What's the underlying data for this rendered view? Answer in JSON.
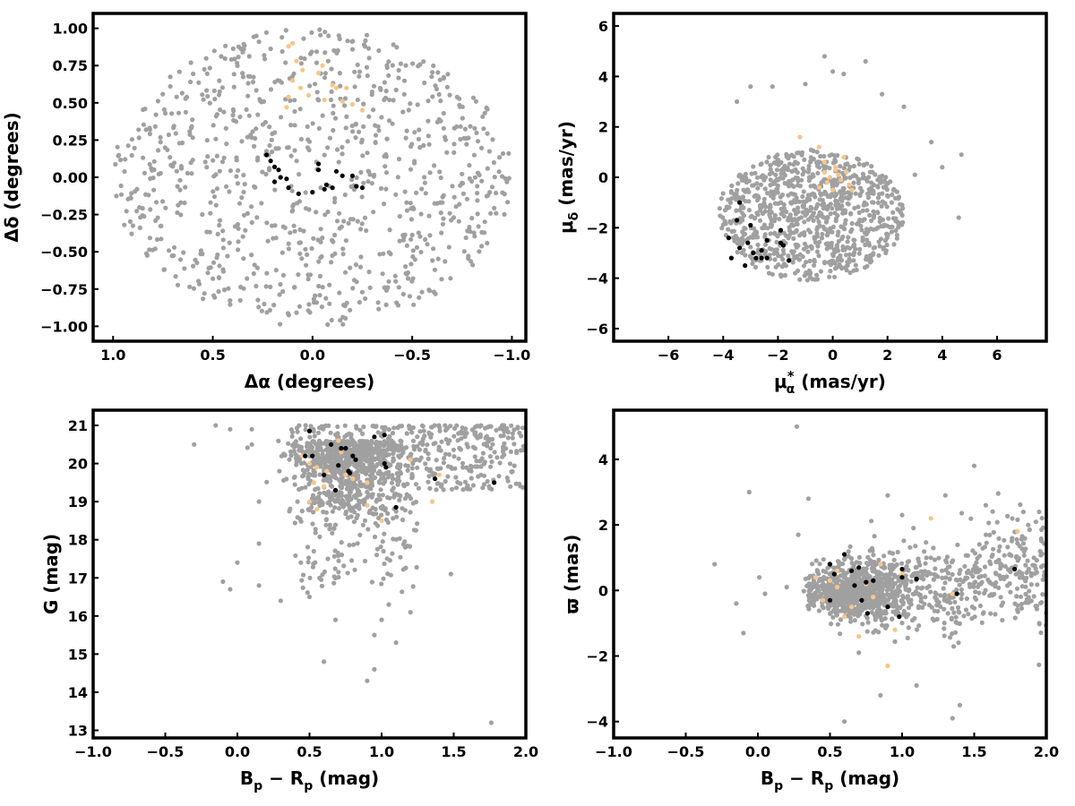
{
  "colors": {
    "field": "#a0a0a0",
    "halo": "#f7c58a",
    "core": "#000000",
    "frame": "#000000"
  },
  "chart_data": [
    {
      "type": "scatter",
      "id": "sky",
      "xlim": [
        1.1,
        -1.07
      ],
      "ylim": [
        -1.1,
        1.1
      ],
      "xticks": [
        1.0,
        0.5,
        0.0,
        -0.5,
        -1.0
      ],
      "xtick_labels": [
        "1.0",
        "0.5",
        "0.0",
        "−0.5",
        "−1.0"
      ],
      "yticks": [
        1.0,
        0.75,
        0.5,
        0.25,
        0.0,
        -0.25,
        -0.5,
        -0.75,
        -1.0
      ],
      "ytick_labels": [
        "1.00",
        "0.75",
        "0.50",
        "0.25",
        "0.00",
        "−0.25",
        "−0.50",
        "−0.75",
        "−1.00"
      ],
      "xlabel": "Δα (degrees)",
      "ylabel": "Δδ (degrees)",
      "grid": false,
      "field_cloud": {
        "shape": "disk",
        "center": [
          0.0,
          0.0
        ],
        "radius": [
          1.0,
          1.0
        ],
        "count": 900
      },
      "halo_points": [
        [
          0.12,
          0.88
        ],
        [
          0.08,
          0.78
        ],
        [
          0.05,
          0.72
        ],
        [
          -0.05,
          0.75
        ],
        [
          -0.03,
          0.7
        ],
        [
          0.1,
          0.65
        ],
        [
          0.06,
          0.6
        ],
        [
          0.02,
          0.55
        ],
        [
          0.12,
          0.54
        ],
        [
          -0.06,
          0.52
        ],
        [
          -0.12,
          0.6
        ],
        [
          -0.17,
          0.6
        ],
        [
          -0.15,
          0.51
        ],
        [
          -0.2,
          0.49
        ],
        [
          -0.25,
          0.45
        ],
        [
          0.13,
          0.47
        ],
        [
          0.1,
          0.9
        ],
        [
          -0.1,
          0.62
        ]
      ],
      "core_points": [
        [
          0.23,
          0.15
        ],
        [
          0.21,
          0.11
        ],
        [
          0.19,
          0.07
        ],
        [
          0.17,
          0.05
        ],
        [
          0.16,
          0.0
        ],
        [
          0.19,
          -0.03
        ],
        [
          0.13,
          -0.01
        ],
        [
          0.12,
          -0.07
        ],
        [
          0.07,
          -0.11
        ],
        [
          0.0,
          -0.1
        ],
        [
          -0.03,
          0.09
        ],
        [
          -0.03,
          0.05
        ],
        [
          -0.07,
          -0.05
        ],
        [
          -0.06,
          -0.08
        ],
        [
          -0.1,
          -0.07
        ],
        [
          -0.12,
          0.04
        ],
        [
          -0.15,
          0.01
        ],
        [
          -0.2,
          0.01
        ],
        [
          -0.22,
          -0.06
        ],
        [
          -0.25,
          -0.07
        ]
      ]
    },
    {
      "type": "scatter",
      "id": "proper-motion",
      "xlim": [
        -8,
        7.8
      ],
      "ylim": [
        -6.5,
        6.5
      ],
      "xticks": [
        -6,
        -4,
        -2,
        0,
        2,
        4,
        6
      ],
      "xtick_labels": [
        "−6",
        "−4",
        "−2",
        "0",
        "2",
        "4",
        "6"
      ],
      "yticks": [
        6,
        4,
        2,
        0,
        -2,
        -4,
        -6
      ],
      "ytick_labels": [
        "6",
        "4",
        "2",
        "0",
        "−2",
        "−4",
        "−6"
      ],
      "xlabel_symbol": "μ",
      "xlabel_subscript": "α",
      "xlabel_superscript": "*",
      "xlabel_rest": " (mas/yr)",
      "ylabel_symbol": "μ",
      "ylabel_subscript": "δ",
      "ylabel_rest": " (mas/yr)",
      "grid": false,
      "field_cloud": {
        "shape": "ellipse",
        "center": [
          -0.8,
          -1.5
        ],
        "radius": [
          3.4,
          2.6
        ],
        "count": 900
      },
      "field_extra": [
        [
          -1.0,
          3.7
        ],
        [
          -0.3,
          4.8
        ],
        [
          0.0,
          4.2
        ],
        [
          0.4,
          4.1
        ],
        [
          1.2,
          4.6
        ],
        [
          -2.2,
          3.6
        ],
        [
          -3.0,
          3.6
        ],
        [
          -3.5,
          3.0
        ],
        [
          1.8,
          3.3
        ],
        [
          2.6,
          2.8
        ],
        [
          3.6,
          1.4
        ],
        [
          4.7,
          0.9
        ],
        [
          4.0,
          0.4
        ],
        [
          3.0,
          0.1
        ],
        [
          4.6,
          -1.6
        ]
      ],
      "halo_points": [
        [
          -0.5,
          1.2
        ],
        [
          -0.3,
          0.6
        ],
        [
          0.1,
          0.4
        ],
        [
          0.5,
          0.2
        ],
        [
          0.3,
          -0.1
        ],
        [
          -0.2,
          -0.2
        ],
        [
          0.0,
          -0.5
        ],
        [
          -0.5,
          -0.4
        ],
        [
          0.6,
          -0.3
        ],
        [
          0.2,
          0.1
        ],
        [
          -0.3,
          0.2
        ],
        [
          0.4,
          0.8
        ],
        [
          -1.2,
          1.6
        ],
        [
          0.7,
          -0.5
        ],
        [
          -0.1,
          0.0
        ],
        [
          0.1,
          0.3
        ]
      ],
      "core_points": [
        [
          -3.4,
          -1.0
        ],
        [
          -3.5,
          -1.7
        ],
        [
          -3.0,
          -1.9
        ],
        [
          -3.8,
          -2.4
        ],
        [
          -3.1,
          -2.6
        ],
        [
          -2.4,
          -2.5
        ],
        [
          -3.4,
          -2.8
        ],
        [
          -2.9,
          -3.0
        ],
        [
          -2.6,
          -2.9
        ],
        [
          -3.7,
          -3.2
        ],
        [
          -2.8,
          -3.2
        ],
        [
          -2.6,
          -3.2
        ],
        [
          -2.4,
          -3.2
        ],
        [
          -3.2,
          -3.5
        ],
        [
          -1.9,
          -2.6
        ],
        [
          -1.8,
          -2.7
        ],
        [
          -1.6,
          -3.3
        ],
        [
          -1.9,
          -2.1
        ]
      ]
    },
    {
      "type": "scatter",
      "id": "cmd",
      "xlim": [
        -1.0,
        2.0
      ],
      "ylim": [
        12.8,
        21.4
      ],
      "xticks": [
        -1.0,
        -0.5,
        0.0,
        0.5,
        1.0,
        1.5,
        2.0
      ],
      "xtick_labels": [
        "−1.0",
        "−0.5",
        "0.0",
        "0.5",
        "1.0",
        "1.5",
        "2.0"
      ],
      "yticks": [
        21,
        20,
        19,
        18,
        17,
        16,
        15,
        14,
        13
      ],
      "ytick_labels": [
        "21",
        "20",
        "19",
        "18",
        "17",
        "16",
        "15",
        "14",
        "13"
      ],
      "xlabel_parts": [
        "B",
        "p",
        " − R",
        "p",
        " (mag)"
      ],
      "ylabel": "G (mag)",
      "grid": false,
      "field_points": [
        [
          1.76,
          13.2
        ],
        [
          0.9,
          14.3
        ],
        [
          0.6,
          14.8
        ],
        [
          0.95,
          14.6
        ],
        [
          1.1,
          15.3
        ],
        [
          0.95,
          15.5
        ],
        [
          1.0,
          15.9
        ],
        [
          1.2,
          16.1
        ],
        [
          0.68,
          15.9
        ],
        [
          0.3,
          16.4
        ],
        [
          0.15,
          16.8
        ],
        [
          0.0,
          17.4
        ],
        [
          -0.1,
          16.9
        ],
        [
          -0.05,
          16.7
        ],
        [
          0.15,
          17.9
        ],
        [
          0.5,
          16.5
        ],
        [
          1.48,
          17.1
        ],
        [
          1.05,
          16.3
        ],
        [
          -0.3,
          20.5
        ],
        [
          -0.15,
          21.0
        ],
        [
          -0.05,
          20.9
        ],
        [
          0.1,
          20.9
        ],
        [
          0.15,
          19.0
        ],
        [
          0.1,
          20.5
        ]
      ],
      "halo_points": [
        [
          0.45,
          20.2
        ],
        [
          0.5,
          20.0
        ],
        [
          0.53,
          19.5
        ],
        [
          0.55,
          19.9
        ],
        [
          0.5,
          19.0
        ],
        [
          0.55,
          18.8
        ],
        [
          0.62,
          19.8
        ],
        [
          0.7,
          20.6
        ],
        [
          0.75,
          19.7
        ],
        [
          0.8,
          19.6
        ],
        [
          0.9,
          18.9
        ],
        [
          0.9,
          19.5
        ],
        [
          1.0,
          18.5
        ],
        [
          1.2,
          20.1
        ],
        [
          1.35,
          19.0
        ],
        [
          1.4,
          19.7
        ],
        [
          0.72,
          20.3
        ],
        [
          0.6,
          19.4
        ]
      ],
      "core_points": [
        [
          0.47,
          20.2
        ],
        [
          0.52,
          20.2
        ],
        [
          0.5,
          20.85
        ],
        [
          0.6,
          19.7
        ],
        [
          0.65,
          20.5
        ],
        [
          0.68,
          19.3
        ],
        [
          0.7,
          19.95
        ],
        [
          0.72,
          20.4
        ],
        [
          0.75,
          20.4
        ],
        [
          0.77,
          19.8
        ],
        [
          0.8,
          20.2
        ],
        [
          0.82,
          20.1
        ],
        [
          0.95,
          20.7
        ],
        [
          1.02,
          20.75
        ],
        [
          1.02,
          20.0
        ],
        [
          1.03,
          19.9
        ],
        [
          1.1,
          18.85
        ],
        [
          1.37,
          19.6
        ],
        [
          1.78,
          19.5
        ],
        [
          0.78,
          19.75
        ]
      ]
    },
    {
      "type": "scatter",
      "id": "parallax",
      "xlim": [
        -1.0,
        2.0
      ],
      "ylim": [
        -4.5,
        5.5
      ],
      "xticks": [
        -1.0,
        -0.5,
        0.0,
        0.5,
        1.0,
        1.5,
        2.0
      ],
      "xtick_labels": [
        "−1.0",
        "−0.5",
        "0.0",
        "0.5",
        "1.0",
        "1.5",
        "2.0"
      ],
      "yticks": [
        4,
        2,
        0,
        -2,
        -4
      ],
      "ytick_labels": [
        "4",
        "2",
        "0",
        "−2",
        "−4"
      ],
      "xlabel_parts": [
        "B",
        "p",
        " − R",
        "p",
        " (mag)"
      ],
      "ylabel": "ϖ (mas)",
      "grid": false,
      "field_points": [
        [
          0.27,
          5.0
        ],
        [
          -0.06,
          3.0
        ],
        [
          -0.3,
          0.8
        ],
        [
          -0.15,
          -0.4
        ],
        [
          -0.1,
          -1.3
        ],
        [
          0.35,
          2.8
        ],
        [
          0.28,
          1.7
        ],
        [
          0.6,
          -4.0
        ],
        [
          0.85,
          -3.2
        ],
        [
          1.1,
          -2.9
        ],
        [
          1.35,
          -3.9
        ],
        [
          1.4,
          -3.5
        ],
        [
          0.7,
          -1.9
        ],
        [
          1.5,
          3.8
        ],
        [
          1.58,
          2.6
        ],
        [
          1.95,
          2.4
        ],
        [
          1.0,
          2.3
        ],
        [
          0.9,
          2.9
        ],
        [
          0.01,
          0.4
        ],
        [
          0.05,
          -0.1
        ],
        [
          1.3,
          2.9
        ],
        [
          0.2,
          0.1
        ]
      ],
      "halo_points": [
        [
          0.4,
          0.4
        ],
        [
          0.45,
          -0.3
        ],
        [
          0.5,
          0.3
        ],
        [
          0.55,
          0.1
        ],
        [
          0.6,
          -0.8
        ],
        [
          0.65,
          -0.5
        ],
        [
          0.7,
          -1.4
        ],
        [
          0.75,
          0.2
        ],
        [
          0.8,
          -0.2
        ],
        [
          0.9,
          -2.3
        ],
        [
          0.95,
          -1.2
        ],
        [
          1.0,
          0.5
        ],
        [
          1.2,
          2.2
        ],
        [
          1.35,
          -0.1
        ],
        [
          1.8,
          1.8
        ],
        [
          0.55,
          0.6
        ],
        [
          0.85,
          0.8
        ]
      ],
      "core_points": [
        [
          0.5,
          0.8
        ],
        [
          0.5,
          -0.3
        ],
        [
          0.53,
          0.5
        ],
        [
          0.65,
          0.6
        ],
        [
          0.67,
          0.15
        ],
        [
          0.7,
          0.7
        ],
        [
          0.72,
          -0.3
        ],
        [
          0.75,
          0.25
        ],
        [
          0.76,
          -0.7
        ],
        [
          0.8,
          0.3
        ],
        [
          0.9,
          -0.5
        ],
        [
          0.98,
          -0.8
        ],
        [
          1.0,
          0.4
        ],
        [
          1.0,
          0.65
        ],
        [
          1.1,
          0.35
        ],
        [
          1.38,
          -0.1
        ],
        [
          1.78,
          0.65
        ],
        [
          0.6,
          1.1
        ]
      ]
    }
  ]
}
